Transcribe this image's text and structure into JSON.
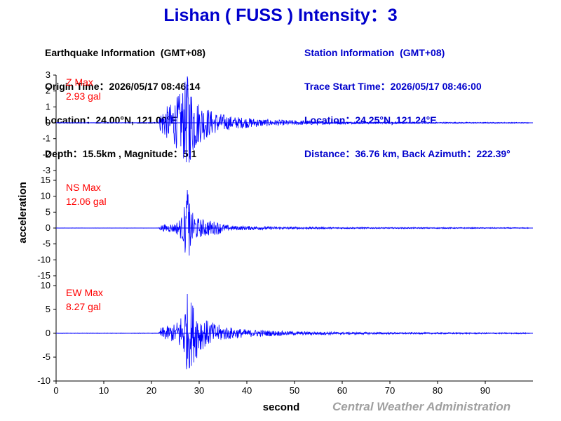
{
  "page_title": "Lishan ( FUSS ) Intensity：3",
  "earthquake_info": {
    "heading": "Earthquake Information  (GMT+08)",
    "origin_time": "Origin Time：2026/05/17 08:46:14",
    "location": "Location：24.00°N, 121.00°E",
    "depth_magnitude": "Depth：15.5km , Magnitude：5.1"
  },
  "station_info": {
    "heading": "Station Information  (GMT+08)",
    "trace_start": "Trace Start Time：2026/05/17 08:46:00",
    "location": "Location：24.25°N, 121.24°E",
    "distance": "Distance：36.76 km, Back Azimuth：222.39°"
  },
  "footer": "Central Weather Administration",
  "colors": {
    "trace": "#0000ff",
    "label": "#ff0000",
    "title": "#0000cc",
    "footer": "#a0a0a0"
  },
  "chart_data": {
    "type": "line",
    "xlabel": "second",
    "ylabel": "acceleration",
    "xlim": [
      0,
      100
    ],
    "x_ticks": [
      0,
      10,
      20,
      30,
      40,
      50,
      60,
      70,
      80,
      90
    ],
    "series": [
      {
        "name": "Z",
        "max_label": "Z Max",
        "max_value": "2.93 gal",
        "ylim": [
          -3,
          3
        ],
        "y_ticks": [
          3,
          2,
          1,
          0,
          -1,
          -2,
          -3
        ],
        "envelope": [
          [
            0,
            0.02
          ],
          [
            21.5,
            0.02
          ],
          [
            22,
            0.8
          ],
          [
            24,
            1.2
          ],
          [
            26,
            1.9
          ],
          [
            27.5,
            2.93
          ],
          [
            28.5,
            2.2
          ],
          [
            30,
            1.3
          ],
          [
            33,
            0.7
          ],
          [
            37,
            0.4
          ],
          [
            45,
            0.2
          ],
          [
            60,
            0.08
          ],
          [
            75,
            0.05
          ],
          [
            100,
            0.03
          ]
        ]
      },
      {
        "name": "NS",
        "max_label": "NS Max",
        "max_value": "12.06 gal",
        "ylim": [
          -15,
          15
        ],
        "y_ticks": [
          15,
          10,
          5,
          0,
          -5,
          -10,
          -15
        ],
        "envelope": [
          [
            0,
            0.05
          ],
          [
            21.5,
            0.05
          ],
          [
            22,
            1.0
          ],
          [
            25,
            1.5
          ],
          [
            26.5,
            4.0
          ],
          [
            27.5,
            12.06
          ],
          [
            28.5,
            5.0
          ],
          [
            30,
            3.0
          ],
          [
            34,
            2.0
          ],
          [
            36,
            0.8
          ],
          [
            45,
            0.5
          ],
          [
            60,
            0.25
          ],
          [
            100,
            0.15
          ]
        ]
      },
      {
        "name": "EW",
        "max_label": "EW Max",
        "max_value": "8.27 gal",
        "ylim": [
          -10,
          10
        ],
        "y_ticks": [
          10,
          5,
          0,
          -5,
          -10
        ],
        "envelope": [
          [
            0,
            0.05
          ],
          [
            21.5,
            0.05
          ],
          [
            22,
            1.2
          ],
          [
            25,
            2.0
          ],
          [
            26.5,
            4.5
          ],
          [
            27.5,
            8.27
          ],
          [
            29,
            6.0
          ],
          [
            31,
            3.0
          ],
          [
            35,
            1.5
          ],
          [
            40,
            0.8
          ],
          [
            50,
            0.4
          ],
          [
            70,
            0.2
          ],
          [
            100,
            0.12
          ]
        ]
      }
    ]
  }
}
